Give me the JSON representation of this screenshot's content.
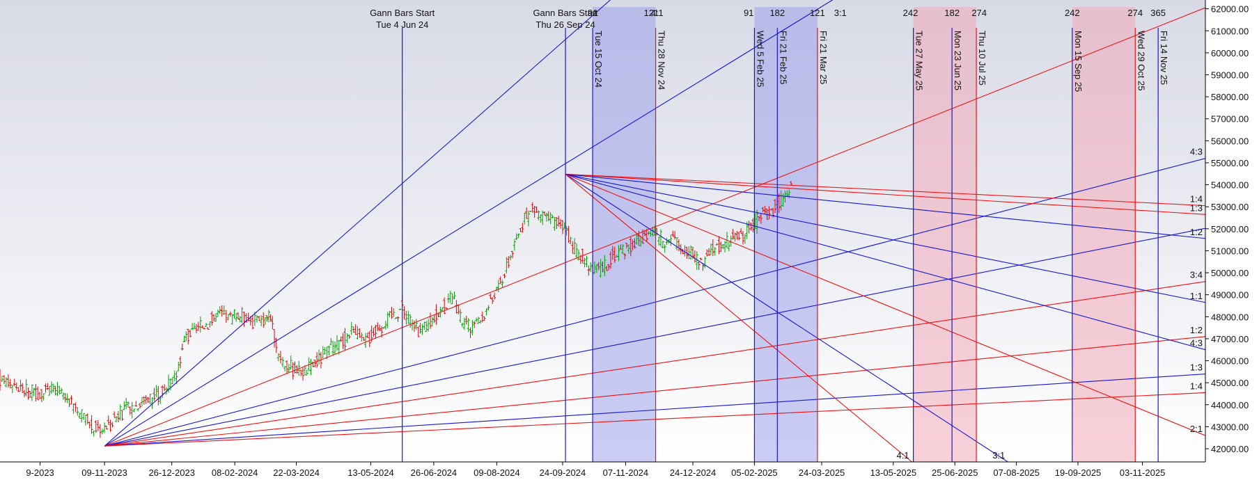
{
  "chart_data": {
    "type": "candlestick",
    "title": "",
    "xlabel": "",
    "ylabel": "",
    "ylim": [
      41400,
      62400
    ],
    "x_range": [
      "2023-08-28",
      "2025-12-17"
    ],
    "grid": false,
    "colors": {
      "up": "#00a000",
      "down": "#e00000",
      "blue": "#1515d8",
      "red": "#f01010",
      "blue_band": "#9ea3ea",
      "red_band": "#f0aab8"
    },
    "y_ticks": [
      "42000.00",
      "43000.00",
      "44000.00",
      "45000.00",
      "46000.00",
      "47000.00",
      "48000.00",
      "49000.00",
      "50000.00",
      "51000.00",
      "52000.00",
      "53000.00",
      "54000.00",
      "55000.00",
      "56000.00",
      "57000.00",
      "58000.00",
      "59000.00",
      "60000.00",
      "61000.00",
      "62000.00"
    ],
    "x_ticks": [
      {
        "date": "2023-09-25",
        "label": "9-2023"
      },
      {
        "date": "2023-11-09",
        "label": "09-11-2023"
      },
      {
        "date": "2023-12-26",
        "label": "26-12-2023"
      },
      {
        "date": "2024-02-08",
        "label": "08-02-2024"
      },
      {
        "date": "2024-03-22",
        "label": "22-03-2024"
      },
      {
        "date": "2024-05-13",
        "label": "13-05-2024"
      },
      {
        "date": "2024-06-26",
        "label": "26-06-2024"
      },
      {
        "date": "2024-08-09",
        "label": "09-08-2024"
      },
      {
        "date": "2024-09-24",
        "label": "24-09-2024"
      },
      {
        "date": "2024-11-07",
        "label": "07-11-2024"
      },
      {
        "date": "2024-12-24",
        "label": "24-12-2024"
      },
      {
        "date": "2025-02-05",
        "label": "05-02-2025"
      },
      {
        "date": "2025-03-24",
        "label": "24-03-2025"
      },
      {
        "date": "2025-05-13",
        "label": "13-05-2025"
      },
      {
        "date": "2025-06-25",
        "label": "25-06-2025"
      },
      {
        "date": "2025-08-07",
        "label": "07-08-2025"
      },
      {
        "date": "2025-09-19",
        "label": "19-09-2025"
      },
      {
        "date": "2025-11-03",
        "label": "03-11-2025"
      }
    ],
    "top_texts": [
      {
        "text": "Gann Bars Start",
        "date": "2024-06-04",
        "row": 1
      },
      {
        "text": "Tue 4 Jun 24",
        "date": "2024-06-04",
        "row": 2
      },
      {
        "text": "Gann Bars Start",
        "date": "2024-09-26",
        "row": 1
      },
      {
        "text": "Thu 26 Sep 24",
        "date": "2024-09-26",
        "row": 2
      },
      {
        "text": "91",
        "date": "2024-10-15",
        "row": 1
      },
      {
        "text": "121",
        "date": "2024-11-25",
        "row": 1
      },
      {
        "text": "4:1",
        "date": "2024-11-29",
        "row": 1
      },
      {
        "text": "91",
        "date": "2025-02-01",
        "row": 1
      },
      {
        "text": "182",
        "date": "2025-02-21",
        "row": 1
      },
      {
        "text": "121",
        "date": "2025-03-21",
        "row": 1
      },
      {
        "text": "3:1",
        "date": "2025-04-06",
        "row": 1
      },
      {
        "text": "242",
        "date": "2025-05-25",
        "row": 1
      },
      {
        "text": "182",
        "date": "2025-06-23",
        "row": 1
      },
      {
        "text": "274",
        "date": "2025-07-12",
        "row": 1
      },
      {
        "text": "242",
        "date": "2025-09-15",
        "row": 1
      },
      {
        "text": "274",
        "date": "2025-10-29",
        "row": 1
      },
      {
        "text": "365",
        "date": "2025-11-14",
        "row": 1
      }
    ],
    "bands": [
      {
        "start": "2024-10-15",
        "end": "2024-11-28",
        "color": "blue"
      },
      {
        "start": "2025-02-05",
        "end": "2025-03-21",
        "color": "blue"
      },
      {
        "start": "2025-05-27",
        "end": "2025-07-10",
        "color": "red"
      },
      {
        "start": "2025-09-15",
        "end": "2025-10-29",
        "color": "red"
      }
    ],
    "vlines": [
      {
        "date": "2024-06-04",
        "color": "blue",
        "label": ""
      },
      {
        "date": "2024-09-26",
        "color": "blue",
        "label": ""
      },
      {
        "date": "2024-10-15",
        "color": "blue",
        "label": "Tue 15 Oct 24"
      },
      {
        "date": "2024-11-28",
        "color": "red",
        "label": "Thu 28 Nov 24"
      },
      {
        "date": "2025-02-05",
        "color": "blue",
        "label": "Wed 5 Feb 25"
      },
      {
        "date": "2025-02-21",
        "color": "blue",
        "label": "Fri 21 Feb 25"
      },
      {
        "date": "2025-03-21",
        "color": "red",
        "label": "Fri 21 Mar 25"
      },
      {
        "date": "2025-05-27",
        "color": "blue",
        "label": "Tue 27 May 25"
      },
      {
        "date": "2025-06-23",
        "color": "blue",
        "label": "Mon 23 Jun 25"
      },
      {
        "date": "2025-07-10",
        "color": "red",
        "label": "Thu 10 Jul 25"
      },
      {
        "date": "2025-09-15",
        "color": "blue",
        "label": "Mon 15 Sep 25"
      },
      {
        "date": "2025-10-29",
        "color": "red",
        "label": "Wed 29 Oct 25"
      },
      {
        "date": "2025-11-14",
        "color": "blue",
        "label": "Fri 14 Nov 25"
      }
    ],
    "gann_fans": [
      {
        "origin": {
          "date": "2023-11-09",
          "value": 42120
        },
        "lines": [
          {
            "color": "blue",
            "to": {
              "date": "2024-10-29",
              "value": 62500
            },
            "label": ""
          },
          {
            "color": "blue",
            "to": {
              "date": "2025-04-03",
              "value": 62500
            },
            "label": ""
          },
          {
            "color": "red",
            "to": {
              "date": "2025-12-17",
              "value": 62050
            },
            "label": ""
          },
          {
            "color": "blue",
            "to": {
              "date": "2025-12-17",
              "value": 55200
            },
            "label": "4:3"
          },
          {
            "color": "blue",
            "to": {
              "date": "2025-12-17",
              "value": 52020
            },
            "label": ""
          },
          {
            "color": "red",
            "to": {
              "date": "2025-12-17",
              "value": 49600
            },
            "label": "3:4"
          },
          {
            "color": "red",
            "to": {
              "date": "2025-12-17",
              "value": 47100
            },
            "label": "1:2"
          },
          {
            "color": "blue",
            "to": {
              "date": "2025-12-17",
              "value": 45400
            },
            "label": "1:3"
          },
          {
            "color": "red",
            "to": {
              "date": "2025-12-17",
              "value": 44550
            },
            "label": "1:4"
          }
        ]
      },
      {
        "origin": {
          "date": "2024-09-26",
          "value": 54480
        },
        "lines": [
          {
            "color": "red",
            "to": {
              "date": "2025-12-17",
              "value": 53050
            },
            "label": "1:4"
          },
          {
            "color": "red",
            "to": {
              "date": "2025-12-17",
              "value": 52650
            },
            "label": "1:3"
          },
          {
            "color": "blue",
            "to": {
              "date": "2025-12-17",
              "value": 51560
            },
            "label": "1:2"
          },
          {
            "color": "blue",
            "to": {
              "date": "2025-12-17",
              "value": 48650
            },
            "label": "1:1"
          },
          {
            "color": "blue",
            "to": {
              "date": "2025-12-17",
              "value": 46500
            },
            "label": "4:3"
          },
          {
            "color": "red",
            "to": {
              "date": "2025-12-17",
              "value": 42600
            },
            "label": "2:1"
          },
          {
            "color": "blue",
            "to": {
              "date": "2025-08-01",
              "value": 41400
            },
            "label": "3:1"
          },
          {
            "color": "red",
            "to": {
              "date": "2025-05-26",
              "value": 41400
            },
            "label": "4:1"
          }
        ]
      }
    ],
    "segments": [
      {
        "date": "2023-08-28",
        "value": 45200
      },
      {
        "date": "2023-09-10",
        "value": 44780
      },
      {
        "date": "2023-09-22",
        "value": 44480
      },
      {
        "date": "2023-10-03",
        "value": 44700
      },
      {
        "date": "2023-10-14",
        "value": 44300
      },
      {
        "date": "2023-10-24",
        "value": 43500
      },
      {
        "date": "2023-10-31",
        "value": 43000
      },
      {
        "date": "2023-11-09",
        "value": 42900
      },
      {
        "date": "2023-11-20",
        "value": 43650
      },
      {
        "date": "2023-12-01",
        "value": 43950
      },
      {
        "date": "2023-12-08",
        "value": 44300
      },
      {
        "date": "2023-12-18",
        "value": 44500
      },
      {
        "date": "2023-12-28",
        "value": 45150
      },
      {
        "date": "2024-01-05",
        "value": 47100
      },
      {
        "date": "2024-01-15",
        "value": 47500
      },
      {
        "date": "2024-01-23",
        "value": 47850
      },
      {
        "date": "2024-01-30",
        "value": 48150
      },
      {
        "date": "2024-02-05",
        "value": 47950
      },
      {
        "date": "2024-02-13",
        "value": 48050
      },
      {
        "date": "2024-02-22",
        "value": 47750
      },
      {
        "date": "2024-02-28",
        "value": 47900
      },
      {
        "date": "2024-03-04",
        "value": 48050
      },
      {
        "date": "2024-03-08",
        "value": 46650
      },
      {
        "date": "2024-03-14",
        "value": 45800
      },
      {
        "date": "2024-03-21",
        "value": 45600
      },
      {
        "date": "2024-03-28",
        "value": 45550
      },
      {
        "date": "2024-04-04",
        "value": 45850
      },
      {
        "date": "2024-04-11",
        "value": 46300
      },
      {
        "date": "2024-04-18",
        "value": 46600
      },
      {
        "date": "2024-04-25",
        "value": 47000
      },
      {
        "date": "2024-05-01",
        "value": 47450
      },
      {
        "date": "2024-05-08",
        "value": 46800
      },
      {
        "date": "2024-05-15",
        "value": 47300
      },
      {
        "date": "2024-05-22",
        "value": 47700
      },
      {
        "date": "2024-05-29",
        "value": 48100
      },
      {
        "date": "2024-06-04",
        "value": 48450
      },
      {
        "date": "2024-06-11",
        "value": 47650
      },
      {
        "date": "2024-06-18",
        "value": 47300
      },
      {
        "date": "2024-06-25",
        "value": 47900
      },
      {
        "date": "2024-07-02",
        "value": 48350
      },
      {
        "date": "2024-07-09",
        "value": 48800
      },
      {
        "date": "2024-07-16",
        "value": 47800
      },
      {
        "date": "2024-07-23",
        "value": 47450
      },
      {
        "date": "2024-07-30",
        "value": 47900
      },
      {
        "date": "2024-08-06",
        "value": 48850
      },
      {
        "date": "2024-08-13",
        "value": 49700
      },
      {
        "date": "2024-08-20",
        "value": 51000
      },
      {
        "date": "2024-08-27",
        "value": 52200
      },
      {
        "date": "2024-09-03",
        "value": 52900
      },
      {
        "date": "2024-09-10",
        "value": 52600
      },
      {
        "date": "2024-09-17",
        "value": 52350
      },
      {
        "date": "2024-09-24",
        "value": 52150
      },
      {
        "date": "2024-10-01",
        "value": 51250
      },
      {
        "date": "2024-10-08",
        "value": 50700
      },
      {
        "date": "2024-10-15",
        "value": 50050
      },
      {
        "date": "2024-10-22",
        "value": 50200
      },
      {
        "date": "2024-10-29",
        "value": 50750
      },
      {
        "date": "2024-11-05",
        "value": 51100
      },
      {
        "date": "2024-11-12",
        "value": 51300
      },
      {
        "date": "2024-11-19",
        "value": 51500
      },
      {
        "date": "2024-11-26",
        "value": 51950
      },
      {
        "date": "2024-12-03",
        "value": 51450
      },
      {
        "date": "2024-12-10",
        "value": 51550
      },
      {
        "date": "2024-12-17",
        "value": 51100
      },
      {
        "date": "2024-12-24",
        "value": 50800
      },
      {
        "date": "2024-12-31",
        "value": 50400
      },
      {
        "date": "2025-01-07",
        "value": 51050
      },
      {
        "date": "2025-01-14",
        "value": 51300
      },
      {
        "date": "2025-01-21",
        "value": 51550
      },
      {
        "date": "2025-01-28",
        "value": 51700
      },
      {
        "date": "2025-02-04",
        "value": 52150
      },
      {
        "date": "2025-02-11",
        "value": 52550
      },
      {
        "date": "2025-02-18",
        "value": 52950
      },
      {
        "date": "2025-02-25",
        "value": 53300
      },
      {
        "date": "2025-03-04",
        "value": 54000
      }
    ]
  }
}
